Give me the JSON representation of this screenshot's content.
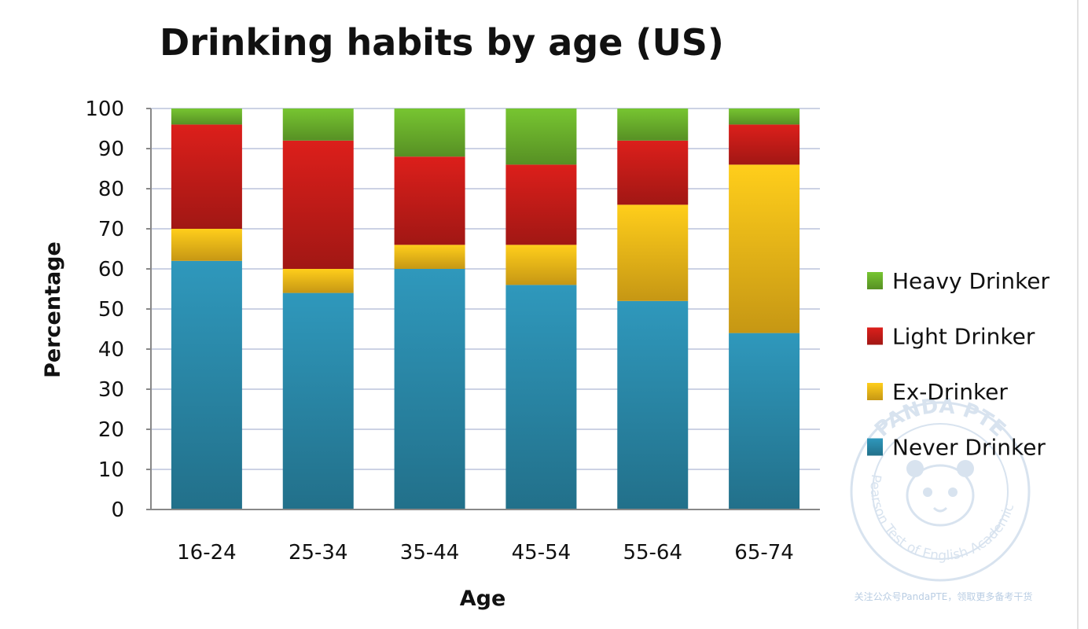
{
  "colors": {
    "never_drinker": "#2a88a8",
    "ex_drinker": "#f2b818",
    "light_drinker": "#c41c18",
    "heavy_drinker": "#6ab02c",
    "grid": "#bcc3dc",
    "axis": "#888888",
    "watermark": "#b9cde3"
  },
  "watermark": {
    "ring_top": "PANDA PTE",
    "ring_side": "Pearson Test of English Academic",
    "caption": "关注公众号PandaPTE，领取更多备考干货"
  },
  "chart_data": {
    "type": "bar",
    "stacked": true,
    "title": "Drinking habits by age (US)",
    "xlabel": "Age",
    "ylabel": "Percentage",
    "ylim": [
      0,
      100
    ],
    "yticks": [
      0,
      10,
      20,
      30,
      40,
      50,
      60,
      70,
      80,
      90,
      100
    ],
    "grid": true,
    "legend_position": "right",
    "categories": [
      "16-24",
      "25-34",
      "35-44",
      "45-54",
      "55-64",
      "65-74"
    ],
    "series": [
      {
        "name": "Never Drinker",
        "color_key": "never_drinker",
        "values": [
          62,
          54,
          60,
          56,
          52,
          44
        ]
      },
      {
        "name": "Ex-Drinker",
        "color_key": "ex_drinker",
        "values": [
          8,
          6,
          6,
          10,
          24,
          42
        ]
      },
      {
        "name": "Light Drinker",
        "color_key": "light_drinker",
        "values": [
          26,
          32,
          22,
          20,
          16,
          10
        ]
      },
      {
        "name": "Heavy Drinker",
        "color_key": "heavy_drinker",
        "values": [
          4,
          8,
          12,
          14,
          8,
          4
        ]
      }
    ],
    "legend_order": [
      "Heavy Drinker",
      "Light Drinker",
      "Ex-Drinker",
      "Never Drinker"
    ]
  }
}
